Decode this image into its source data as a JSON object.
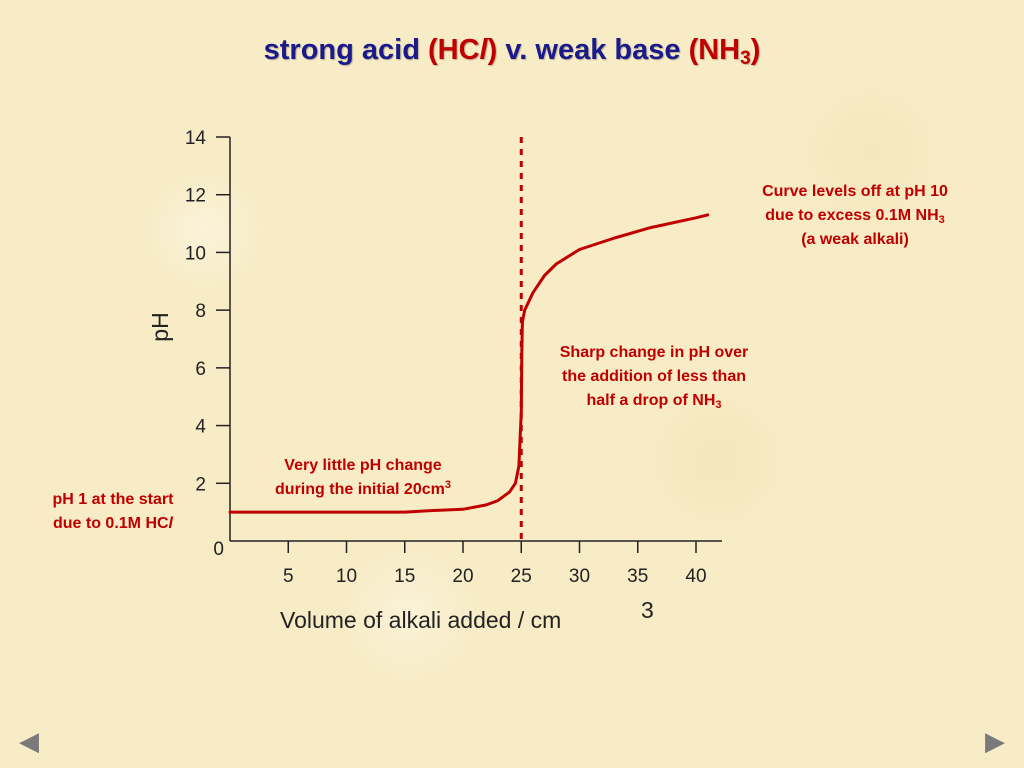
{
  "title": {
    "part1": "strong acid ",
    "acid_open": "(HC",
    "acid_l": "l",
    "acid_close": ")",
    "part2": " v. weak base ",
    "base_open": "(NH",
    "base_sub": "3",
    "base_close": ")"
  },
  "annotations": {
    "start": {
      "line1": "pH 1 at the start",
      "line2_prefix": "due to 0.1M HC",
      "line2_italic": "l"
    },
    "flat": {
      "line1": "Very little pH change",
      "line2_prefix": "during the initial 20cm",
      "line2_sup": "3"
    },
    "sharp": {
      "line1": "Sharp change in pH over",
      "line2": "the addition of less than",
      "line3_prefix": "half a drop of NH",
      "line3_sub": "3"
    },
    "leveloff": {
      "line1": "Curve levels off at pH 10",
      "line2_prefix": "due to excess 0.1M NH",
      "line2_sub": "3",
      "line3": "(a weak alkali)"
    }
  },
  "nav": {
    "prev_symbol": "◀",
    "next_symbol": "▶"
  },
  "colors": {
    "curve": "#c00000",
    "title": "#1a1a8c",
    "highlight": "#c00000",
    "axis": "#222222"
  },
  "chart_data": {
    "type": "line",
    "xlabel": "Volume of alkali added / cm",
    "xlabel_sup": "3",
    "ylabel": "pH",
    "xlim": [
      0,
      42
    ],
    "ylim": [
      0,
      14
    ],
    "x_ticks": [
      5,
      10,
      15,
      20,
      25,
      30,
      35,
      40
    ],
    "y_ticks": [
      0,
      2,
      4,
      6,
      8,
      10,
      12,
      14
    ],
    "equivalence_x": 25,
    "equivalence_line": "dotted",
    "series": [
      {
        "x": [
          0,
          5,
          10,
          15,
          17,
          20,
          22,
          23,
          24,
          24.5,
          24.8,
          25,
          25.05,
          25.1,
          25.3,
          26,
          27,
          28,
          30,
          33,
          36,
          40,
          41
        ],
        "y": [
          1.0,
          1.0,
          1.0,
          1.0,
          1.05,
          1.1,
          1.25,
          1.4,
          1.7,
          2.0,
          2.6,
          4.5,
          6.5,
          7.6,
          8.0,
          8.6,
          9.2,
          9.6,
          10.1,
          10.5,
          10.85,
          11.2,
          11.3
        ]
      }
    ]
  }
}
